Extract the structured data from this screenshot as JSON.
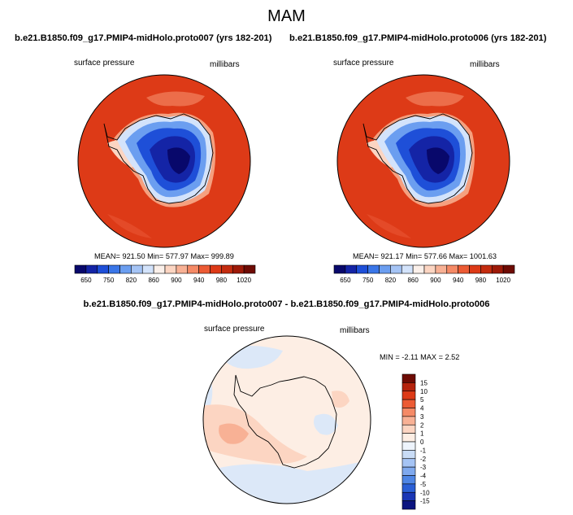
{
  "page_title": "MAM",
  "chart_data": [
    {
      "type": "heatmap",
      "projection": "south-polar-stereographic",
      "title": "b.e21.B1850.f09_g17.PMIP4-midHolo.proto007 (yrs 182-201)",
      "left_label": "surface pressure",
      "right_label": "millibars",
      "stats_text": "MEAN= 921.50  Min= 577.97  Max= 999.89",
      "stats": {
        "mean": 921.5,
        "min": 577.97,
        "max": 999.89
      },
      "colorbar_levels": [
        650,
        700,
        750,
        800,
        820,
        840,
        860,
        880,
        900,
        920,
        940,
        960,
        980,
        1000,
        1020
      ],
      "colorbar_tick_labels": [
        "650",
        "750",
        "820",
        "860",
        "900",
        "940",
        "980",
        "1020"
      ],
      "colorbar_colors": [
        "#08086b",
        "#1424a6",
        "#1e4fd8",
        "#3a76e8",
        "#6b9ef0",
        "#a5c4f5",
        "#d3e3fb",
        "#fbf0ea",
        "#fcd5c2",
        "#f8b195",
        "#f58a66",
        "#ec5b34",
        "#dd3a17",
        "#c42c0f",
        "#9e1a08",
        "#6e0b04"
      ]
    },
    {
      "type": "heatmap",
      "projection": "south-polar-stereographic",
      "title": "b.e21.B1850.f09_g17.PMIP4-midHolo.proto006 (yrs 182-201)",
      "left_label": "surface pressure",
      "right_label": "millibars",
      "stats_text": "MEAN= 921.17  Min= 577.66  Max= 1001.63",
      "stats": {
        "mean": 921.17,
        "min": 577.66,
        "max": 1001.63
      },
      "colorbar_levels": [
        650,
        700,
        750,
        800,
        820,
        840,
        860,
        880,
        900,
        920,
        940,
        960,
        980,
        1000,
        1020
      ],
      "colorbar_tick_labels": [
        "650",
        "750",
        "820",
        "860",
        "900",
        "940",
        "980",
        "1020"
      ],
      "colorbar_colors": [
        "#08086b",
        "#1424a6",
        "#1e4fd8",
        "#3a76e8",
        "#6b9ef0",
        "#a5c4f5",
        "#d3e3fb",
        "#fbf0ea",
        "#fcd5c2",
        "#f8b195",
        "#f58a66",
        "#ec5b34",
        "#dd3a17",
        "#c42c0f",
        "#9e1a08",
        "#6e0b04"
      ]
    },
    {
      "type": "heatmap",
      "projection": "south-polar-stereographic",
      "title": "b.e21.B1850.f09_g17.PMIP4-midHolo.proto007 - b.e21.B1850.f09_g17.PMIP4-midHolo.proto006",
      "left_label": "surface pressure",
      "right_label": "millibars",
      "stats_text": "MIN =  -2.11 MAX =   2.52",
      "stats": {
        "min": -2.11,
        "max": 2.52
      },
      "colorbar_levels": [
        15,
        10,
        5,
        4,
        3,
        2,
        1,
        0,
        -1,
        -2,
        -3,
        -4,
        -5,
        -10,
        -15
      ],
      "colorbar_tick_labels": [
        "15",
        "10",
        "5",
        "4",
        "3",
        "2",
        "1",
        "0",
        "-1",
        "-2",
        "-3",
        "-4",
        "-5",
        "-10",
        "-15"
      ],
      "colorbar_colors": [
        "#6e0b04",
        "#b5230d",
        "#dd3a17",
        "#ec5b34",
        "#f58a66",
        "#f8b195",
        "#fcd5c2",
        "#fdeee4",
        "#eef4fc",
        "#c9dcf6",
        "#a5c4f5",
        "#7fa9ee",
        "#4f86e5",
        "#2a5fd6",
        "#1a36b5",
        "#0c1580"
      ]
    }
  ]
}
